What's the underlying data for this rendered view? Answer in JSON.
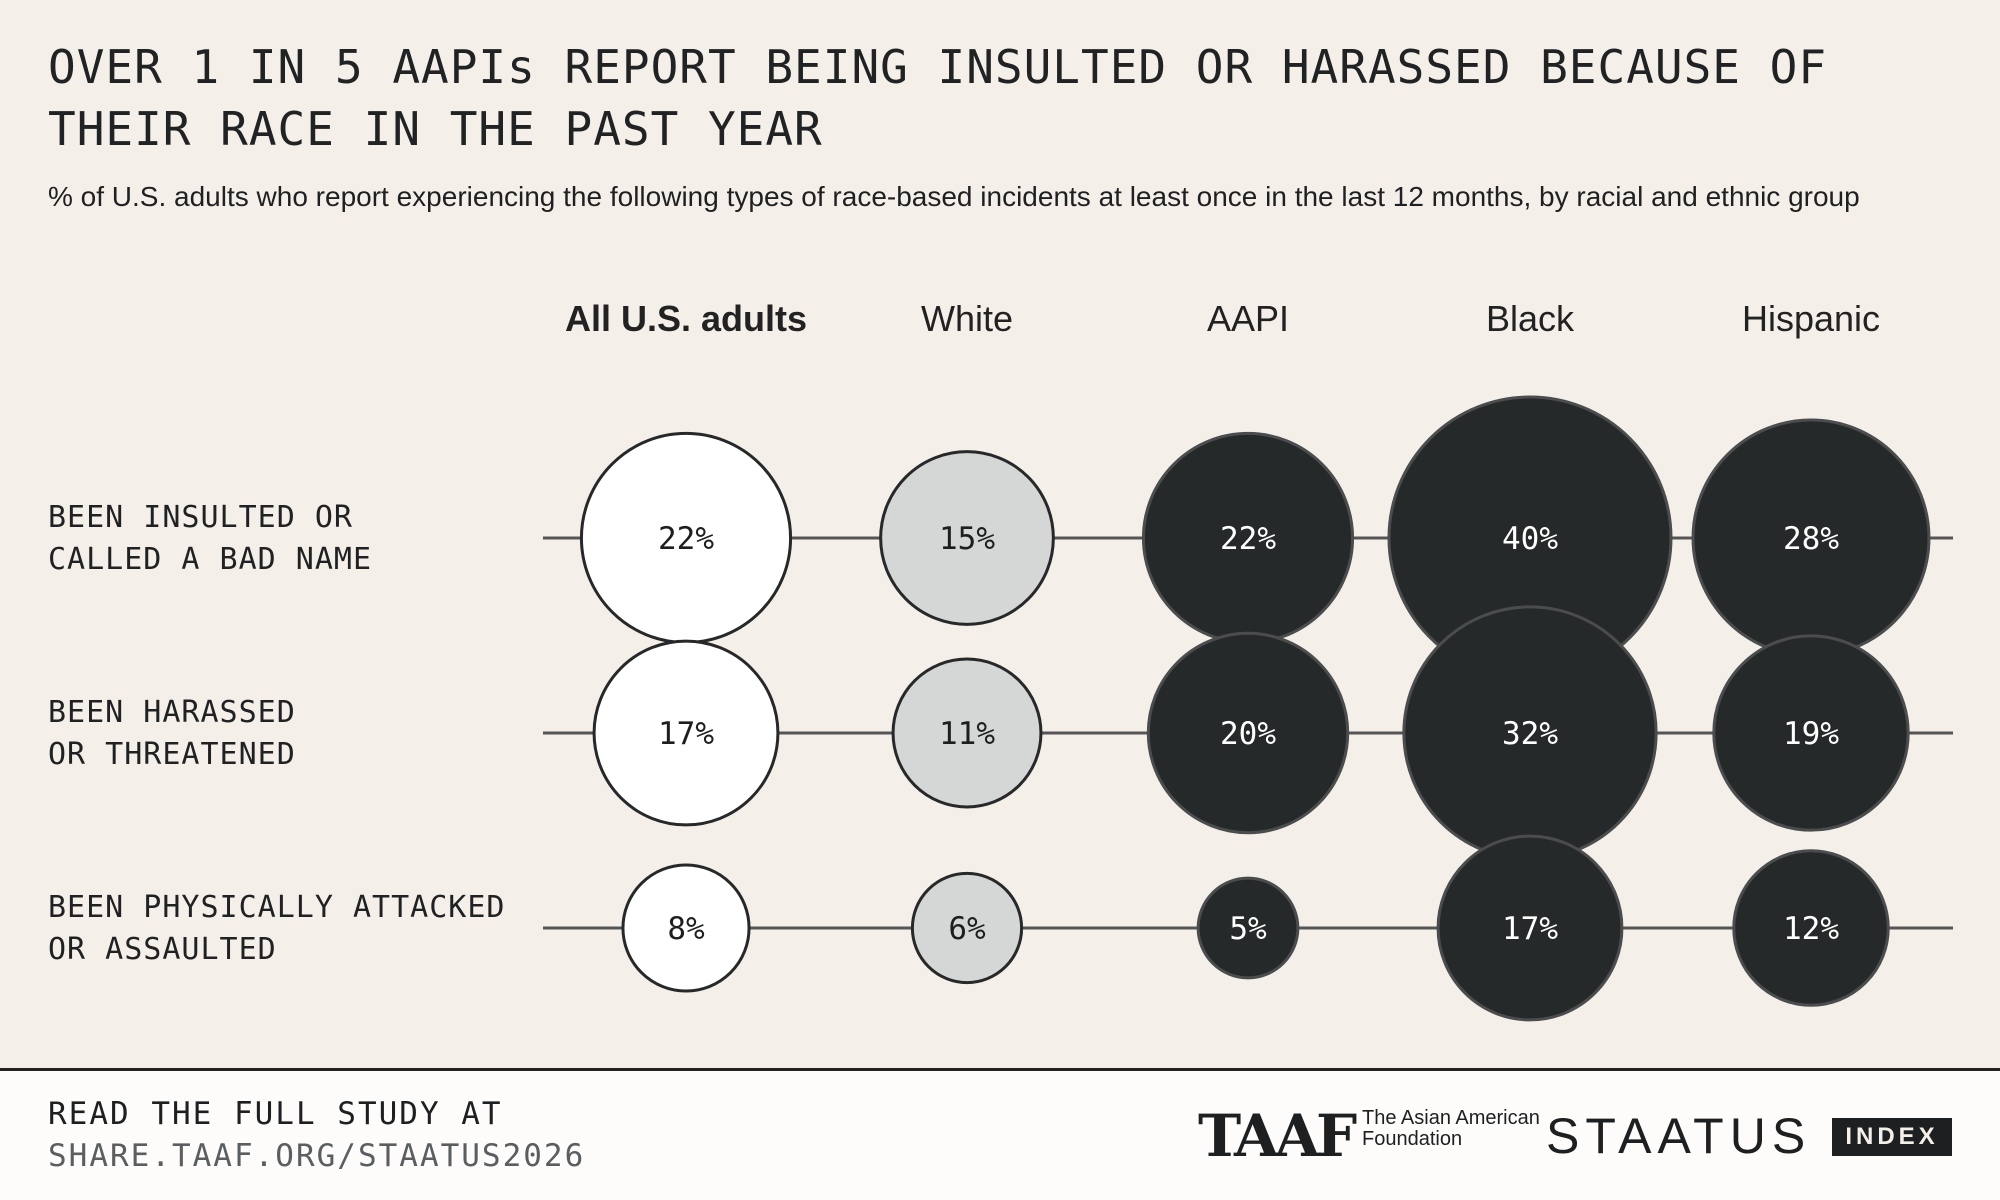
{
  "title": "OVER 1 IN 5 AAPIs REPORT BEING INSULTED OR HARASSED BECAUSE OF THEIR RACE IN THE PAST YEAR",
  "subtitle": "% of U.S. adults who report experiencing the following types of race-based incidents at least once in the last 12 months, by racial and ethnic group",
  "colors": {
    "background": "#f5efe9",
    "all_fill": "#ffffff",
    "white_fill": "#d5d6d6",
    "group_fill": "#26292a",
    "outline": "#262829",
    "group_outline": "#4a4c4e",
    "line": "#555555"
  },
  "chart_data": {
    "type": "bubble-matrix",
    "columns": [
      "All U.S. adults",
      "White",
      "AAPI",
      "Black",
      "Hispanic"
    ],
    "rows": [
      "BEEN INSULTED OR\nCALLED A BAD NAME",
      "BEEN HARASSED\nOR THREATENED",
      "BEEN PHYSICALLY ATTACKED\nOR ASSAULTED"
    ],
    "values": [
      [
        22,
        15,
        22,
        40,
        28
      ],
      [
        17,
        11,
        20,
        32,
        19
      ],
      [
        8,
        6,
        5,
        17,
        12
      ]
    ],
    "labels": [
      [
        "22%",
        "15%",
        "22%",
        "40%",
        "28%"
      ],
      [
        "17%",
        "11%",
        "20%",
        "32%",
        "19%"
      ],
      [
        "8%",
        "6%",
        "5%",
        "17%",
        "12%"
      ]
    ],
    "unit": "%"
  },
  "footer": {
    "cta_line1": "READ THE FULL STUDY AT",
    "cta_line2": "SHARE.TAAF.ORG/STAATUS2026",
    "taaf_logo": "TAAF",
    "taaf_name": "The Asian American Foundation",
    "staatus_logo": "STAATUS",
    "index_badge": "INDEX"
  }
}
